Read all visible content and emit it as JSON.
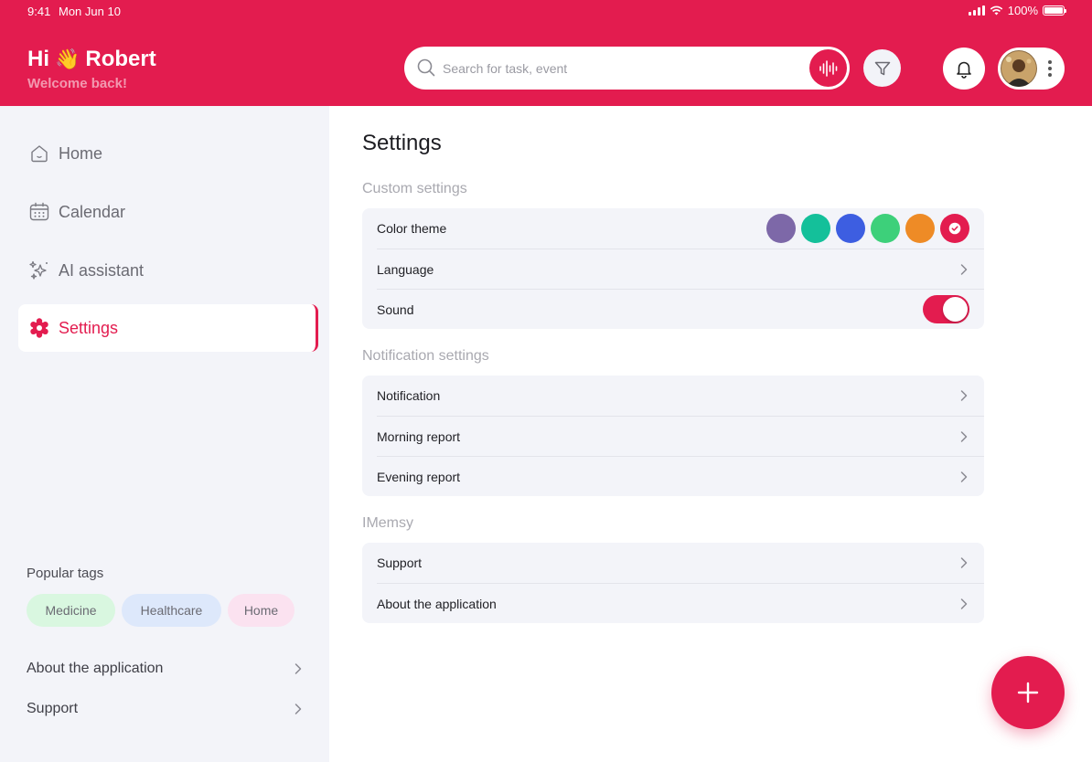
{
  "status_bar": {
    "time": "9:41",
    "date": "Mon Jun 10",
    "battery": "100%"
  },
  "header": {
    "greeting_hi": "Hi",
    "greeting_emoji": "👋",
    "user_name": "Robert",
    "welcome": "Welcome back!",
    "search_placeholder": "Search for task, event"
  },
  "sidebar": {
    "items": [
      {
        "label": "Home",
        "icon": "home-icon"
      },
      {
        "label": "Calendar",
        "icon": "calendar-icon"
      },
      {
        "label": "AI assistant",
        "icon": "sparkles-icon"
      },
      {
        "label": "Settings",
        "icon": "gear-icon",
        "active": true
      }
    ],
    "tags_title": "Popular tags",
    "tags": [
      "Medicine",
      "Healthcare",
      "Home"
    ],
    "links": [
      "About the application",
      "Support"
    ]
  },
  "main": {
    "title": "Settings",
    "sections": [
      {
        "title": "Custom settings",
        "rows": [
          {
            "label": "Color theme"
          },
          {
            "label": "Language"
          },
          {
            "label": "Sound",
            "toggle": true
          }
        ]
      },
      {
        "title": "Notification settings",
        "rows": [
          {
            "label": "Notification"
          },
          {
            "label": "Morning report"
          },
          {
            "label": "Evening report"
          }
        ]
      },
      {
        "title": "IMemsy",
        "rows": [
          {
            "label": "Support"
          },
          {
            "label": "About the application"
          }
        ]
      }
    ],
    "color_theme_options": [
      "#7D68A8",
      "#14C09A",
      "#3D5EE1",
      "#3DD07A",
      "#EE8B26",
      "#E31C4F"
    ],
    "color_theme_selected": "#E31C4F"
  },
  "colors": {
    "accent": "#E31C4F",
    "sidebar_bg": "#F3F4F9"
  }
}
